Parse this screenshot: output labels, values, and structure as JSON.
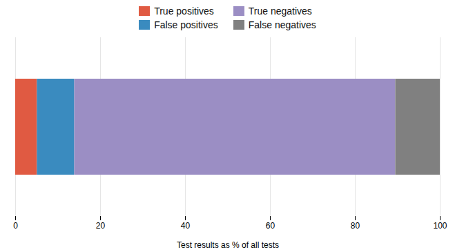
{
  "chart_data": {
    "type": "bar",
    "orientation": "horizontal",
    "stacked": true,
    "categories": [
      null
    ],
    "series": [
      {
        "name": "True positives",
        "color": "#e05a42",
        "values": [
          5.1
        ]
      },
      {
        "name": "False positives",
        "color": "#3a8bbf",
        "values": [
          8.8
        ]
      },
      {
        "name": "True negatives",
        "color": "#9b8ec4",
        "values": [
          75.6
        ]
      },
      {
        "name": "False negatives",
        "color": "#808080",
        "values": [
          10.5
        ]
      }
    ],
    "xlabel": "Test results as % of all tests",
    "xlim": [
      0,
      100
    ],
    "xticks": [
      0,
      20,
      40,
      60,
      80,
      100
    ],
    "grid": true,
    "legend": "top",
    "tick_labels": "x"
  }
}
